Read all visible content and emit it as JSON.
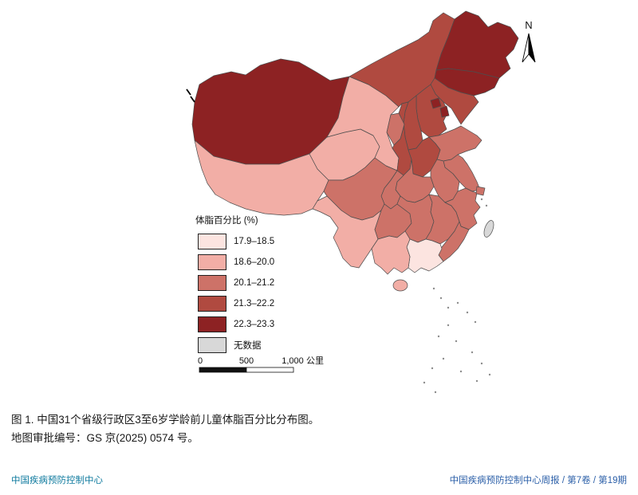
{
  "legend": {
    "title": "体脂百分比 (%)",
    "items": [
      {
        "label": "17.9–18.5",
        "color": "#fce4e0"
      },
      {
        "label": "18.6–20.0",
        "color": "#f2aea6"
      },
      {
        "label": "20.1–21.2",
        "color": "#cd7268"
      },
      {
        "label": "21.3–22.2",
        "color": "#b04a40"
      },
      {
        "label": "22.3–23.3",
        "color": "#8d2223"
      },
      {
        "label": "无数据",
        "color": "#d8d8d8"
      }
    ]
  },
  "scale_bar": {
    "tick0": "0",
    "tick1": "500",
    "tick2": "1,000",
    "unit": "公里"
  },
  "north_arrow_label": "N",
  "caption": {
    "line1": "图 1. 中国31个省级行政区3至6岁学龄前儿童体脂百分比分布图。",
    "line2": "地图审批编号：GS 京(2025) 0574 号。"
  },
  "footer": {
    "left": "中国疾病预防控制中心",
    "left_color": "#0e7a9e",
    "right": "中国疾病预防控制中心周报 / 第7卷 / 第19期",
    "right_color": "#2b5fa8"
  },
  "chart_data": {
    "type": "choropleth",
    "title": "中国31个省级行政区3至6岁学龄前儿童体脂百分比分布图",
    "legend_title": "体脂百分比 (%)",
    "bins": [
      "17.9–18.5",
      "18.6–20.0",
      "20.1–21.2",
      "21.3–22.2",
      "22.3–23.3",
      "无数据"
    ],
    "regions": [
      {
        "id": "beijing",
        "name": "北京",
        "bin": "22.3–23.3"
      },
      {
        "id": "tianjin",
        "name": "天津",
        "bin": "22.3–23.3"
      },
      {
        "id": "hebei",
        "name": "河北",
        "bin": "21.3–22.2"
      },
      {
        "id": "shanxi",
        "name": "山西",
        "bin": "21.3–22.2"
      },
      {
        "id": "neimenggu",
        "name": "内蒙古",
        "bin": "21.3–22.2"
      },
      {
        "id": "liaoning",
        "name": "辽宁",
        "bin": "21.3–22.2"
      },
      {
        "id": "jilin",
        "name": "吉林",
        "bin": "22.3–23.3"
      },
      {
        "id": "heilongjiang",
        "name": "黑龙江",
        "bin": "22.3–23.3"
      },
      {
        "id": "shanghai",
        "name": "上海",
        "bin": "20.1–21.2"
      },
      {
        "id": "jiangsu",
        "name": "江苏",
        "bin": "20.1–21.2"
      },
      {
        "id": "zhejiang",
        "name": "浙江",
        "bin": "20.1–21.2"
      },
      {
        "id": "anhui",
        "name": "安徽",
        "bin": "20.1–21.2"
      },
      {
        "id": "fujian",
        "name": "福建",
        "bin": "20.1–21.2"
      },
      {
        "id": "jiangxi",
        "name": "江西",
        "bin": "20.1–21.2"
      },
      {
        "id": "shandong",
        "name": "山东",
        "bin": "20.1–21.2"
      },
      {
        "id": "henan",
        "name": "河南",
        "bin": "21.3–22.2"
      },
      {
        "id": "hubei",
        "name": "湖北",
        "bin": "20.1–21.2"
      },
      {
        "id": "hunan",
        "name": "湖南",
        "bin": "20.1–21.2"
      },
      {
        "id": "guangdong",
        "name": "广东",
        "bin": "17.9–18.5"
      },
      {
        "id": "guangxi",
        "name": "广西",
        "bin": "18.6–20.0"
      },
      {
        "id": "hainan",
        "name": "海南",
        "bin": "18.6–20.0"
      },
      {
        "id": "chongqing",
        "name": "重庆",
        "bin": "20.1–21.2"
      },
      {
        "id": "sichuan",
        "name": "四川",
        "bin": "20.1–21.2"
      },
      {
        "id": "guizhou",
        "name": "贵州",
        "bin": "20.1–21.2"
      },
      {
        "id": "yunnan",
        "name": "云南",
        "bin": "18.6–20.0"
      },
      {
        "id": "xizang",
        "name": "西藏",
        "bin": "18.6–20.0"
      },
      {
        "id": "shaanxi",
        "name": "陕西",
        "bin": "21.3–22.2"
      },
      {
        "id": "gansu",
        "name": "甘肃",
        "bin": "18.6–20.0"
      },
      {
        "id": "qinghai",
        "name": "青海",
        "bin": "18.6–20.0"
      },
      {
        "id": "ningxia",
        "name": "宁夏",
        "bin": "20.1–21.2"
      },
      {
        "id": "xinjiang",
        "name": "新疆",
        "bin": "22.3–23.3"
      },
      {
        "id": "taiwan",
        "name": "台湾",
        "bin": "无数据"
      }
    ]
  }
}
